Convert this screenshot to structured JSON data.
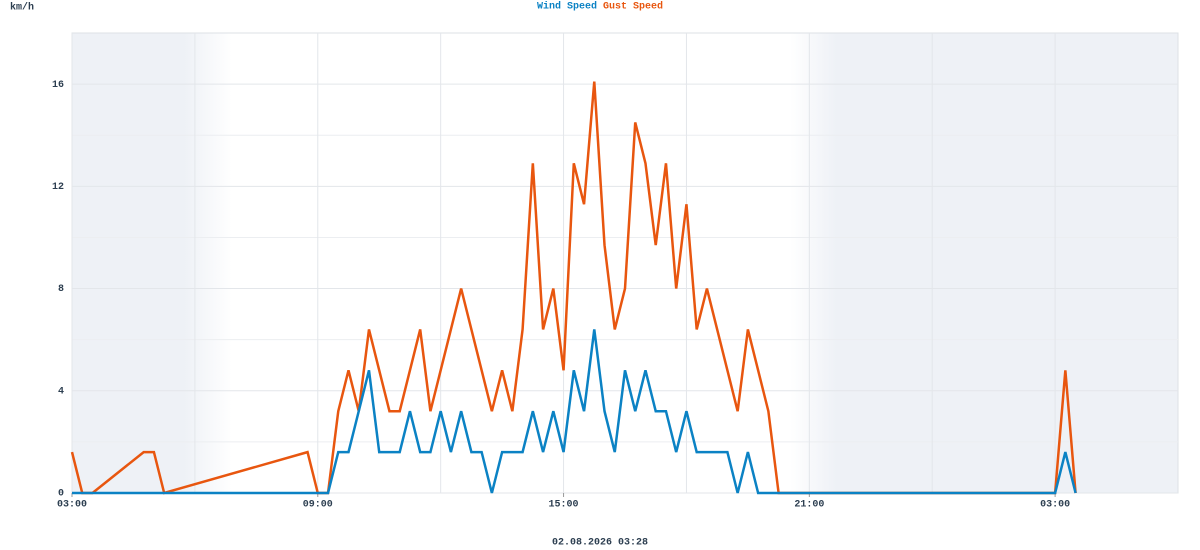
{
  "chart_data": {
    "type": "line",
    "y_unit": "km/h",
    "footer": "02.08.2026 03:28",
    "x": [
      0,
      0.25,
      0.5,
      1.75,
      2,
      2.25,
      5.75,
      6,
      6.25,
      6.5,
      6.75,
      7,
      7.25,
      7.5,
      7.75,
      8,
      8.25,
      8.5,
      8.75,
      9,
      9.25,
      9.5,
      9.75,
      10,
      10.25,
      10.5,
      10.75,
      11,
      11.25,
      11.5,
      11.75,
      12,
      12.25,
      12.5,
      12.75,
      13,
      13.25,
      13.5,
      13.75,
      14,
      14.25,
      14.5,
      14.75,
      15,
      15.25,
      15.5,
      15.75,
      16,
      16.25,
      16.5,
      16.75,
      17,
      17.25,
      17.5,
      24,
      24.25,
      24.5
    ],
    "series": [
      {
        "name": "Gust Speed",
        "color": "#e8560f",
        "values": [
          1.6,
          0,
          0,
          1.6,
          1.6,
          0,
          1.6,
          0,
          0,
          3.2,
          4.8,
          3.2,
          6.4,
          4.8,
          3.2,
          3.2,
          4.8,
          6.4,
          3.2,
          4.8,
          6.4,
          8.0,
          6.4,
          4.8,
          3.2,
          4.8,
          3.2,
          6.4,
          12.9,
          6.4,
          8.0,
          4.8,
          12.9,
          11.3,
          16.1,
          9.7,
          6.4,
          8.0,
          14.5,
          12.9,
          9.7,
          12.9,
          8.0,
          11.3,
          6.4,
          8.0,
          6.4,
          4.8,
          3.2,
          6.4,
          4.8,
          3.2,
          0,
          0,
          0,
          4.8,
          0
        ]
      },
      {
        "name": "Wind Speed",
        "color": "#0b82c4",
        "values": [
          0,
          0,
          0,
          0,
          0,
          0,
          0,
          0,
          0,
          1.6,
          1.6,
          3.2,
          4.8,
          1.6,
          1.6,
          1.6,
          3.2,
          1.6,
          1.6,
          3.2,
          1.6,
          3.2,
          1.6,
          1.6,
          0,
          1.6,
          1.6,
          1.6,
          3.2,
          1.6,
          3.2,
          1.6,
          4.8,
          3.2,
          6.4,
          3.2,
          1.6,
          4.8,
          3.2,
          4.8,
          3.2,
          3.2,
          1.6,
          3.2,
          1.6,
          1.6,
          1.6,
          1.6,
          0,
          1.6,
          0,
          0,
          0,
          0,
          0,
          1.6,
          0
        ]
      }
    ],
    "legend_order": [
      1,
      0
    ],
    "xlim": [
      0,
      27
    ],
    "xticks": [
      {
        "value": 0,
        "label": "03:00"
      },
      {
        "value": 6,
        "label": "09:00"
      },
      {
        "value": 12,
        "label": "15:00"
      },
      {
        "value": 18,
        "label": "21:00"
      },
      {
        "value": 24,
        "label": "03:00"
      }
    ],
    "ylim": [
      0,
      18
    ],
    "yticks": [
      0,
      4,
      8,
      12,
      16
    ],
    "grid": true,
    "minor_grid": true
  }
}
